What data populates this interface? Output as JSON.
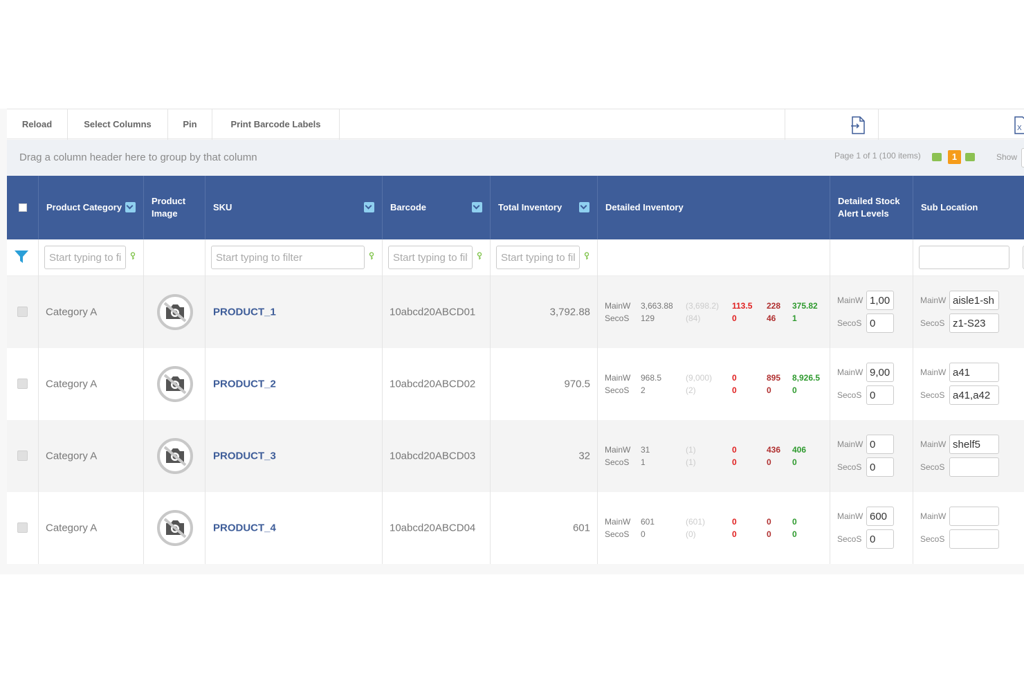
{
  "toolbar": {
    "reload": "Reload",
    "select_columns": "Select Columns",
    "pin": "Pin",
    "print_barcode": "Print Barcode Labels",
    "export_icon": "export-pdf-icon",
    "excel_icon": "excel-icon"
  },
  "groupbar": {
    "hint": "Drag a column header here to group by that column",
    "pager_text": "Page 1 of 1 (100 items)",
    "current_page": "1",
    "show_label": "Show"
  },
  "columns": {
    "product_category": "Product Category",
    "product_image": "Product Image",
    "sku": "SKU",
    "barcode": "Barcode",
    "total_inventory": "Total Inventory",
    "detailed_inventory": "Detailed Inventory",
    "alert_levels": "Detailed Stock Alert Levels",
    "sub_location": "Sub Location"
  },
  "filters": {
    "category_placeholder": "Start typing to filter",
    "sku_placeholder": "Start typing to filter",
    "barcode_placeholder": "Start typing to filter",
    "inventory_placeholder": "Start typing to filter"
  },
  "colors": {
    "header": "#3e5d99",
    "link": "#3e5d99",
    "negative": "#e02020",
    "positive": "#2e9a2e",
    "page_current": "#f59c1a",
    "page_arrow": "#8cc152"
  },
  "rows": [
    {
      "category": "Category A",
      "sku": "PRODUCT_1",
      "barcode": "10abcd20ABCD01",
      "total": "3,792.88",
      "inv": {
        "loc1": "MainW",
        "loc2": "SecoS",
        "r1": [
          "3,663.88",
          "(3,698.2)",
          "113.5",
          "228",
          "375.82"
        ],
        "r2": [
          "129",
          "(84)",
          "0",
          "46",
          "1"
        ]
      },
      "alerts": {
        "l1": "MainW",
        "v1": "1,00",
        "l2": "SecoS",
        "v2": "0"
      },
      "sub": {
        "l1": "MainW",
        "v1": "aisle1-sh",
        "l2": "SecoS",
        "v2": "z1-S23"
      }
    },
    {
      "category": "Category A",
      "sku": "PRODUCT_2",
      "barcode": "10abcd20ABCD02",
      "total": "970.5",
      "inv": {
        "loc1": "MainW",
        "loc2": "SecoS",
        "r1": [
          "968.5",
          "(9,000)",
          "0",
          "895",
          "8,926.5"
        ],
        "r2": [
          "2",
          "(2)",
          "0",
          "0",
          "0"
        ]
      },
      "alerts": {
        "l1": "MainW",
        "v1": "9,00",
        "l2": "SecoS",
        "v2": "0"
      },
      "sub": {
        "l1": "MainW",
        "v1": "a41",
        "l2": "SecoS",
        "v2": "a41,a42"
      }
    },
    {
      "category": "Category A",
      "sku": "PRODUCT_3",
      "barcode": "10abcd20ABCD03",
      "total": "32",
      "inv": {
        "loc1": "MainW",
        "loc2": "SecoS",
        "r1": [
          "31",
          "(1)",
          "0",
          "436",
          "406"
        ],
        "r2": [
          "1",
          "(1)",
          "0",
          "0",
          "0"
        ]
      },
      "alerts": {
        "l1": "MainW",
        "v1": "0",
        "l2": "SecoS",
        "v2": "0"
      },
      "sub": {
        "l1": "MainW",
        "v1": "shelf5",
        "l2": "SecoS",
        "v2": ""
      }
    },
    {
      "category": "Category A",
      "sku": "PRODUCT_4",
      "barcode": "10abcd20ABCD04",
      "total": "601",
      "inv": {
        "loc1": "MainW",
        "loc2": "SecoS",
        "r1": [
          "601",
          "(601)",
          "0",
          "0",
          "0"
        ],
        "r2": [
          "0",
          "(0)",
          "0",
          "0",
          "0"
        ]
      },
      "alerts": {
        "l1": "MainW",
        "v1": "600",
        "l2": "SecoS",
        "v2": "0"
      },
      "sub": {
        "l1": "MainW",
        "v1": "",
        "l2": "SecoS",
        "v2": ""
      }
    }
  ]
}
